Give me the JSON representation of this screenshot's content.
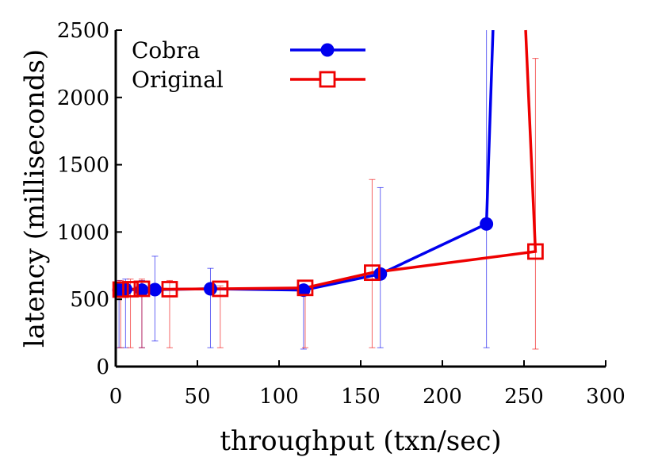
{
  "chart_data": {
    "type": "line",
    "xlabel": "throughput (txn/sec)",
    "ylabel": "latency (milliseconds)",
    "xlim": [
      0,
      300
    ],
    "ylim": [
      0,
      2500
    ],
    "xticks": [
      0,
      50,
      100,
      150,
      200,
      250,
      300
    ],
    "xtick_labels": [
      "0",
      "50",
      "100",
      "150",
      "200",
      "250",
      "300"
    ],
    "yticks": [
      0,
      500,
      1000,
      1500,
      2000,
      2500
    ],
    "ytick_labels": [
      "0",
      "500",
      "1000",
      "1500",
      "2000",
      "2500"
    ],
    "grid": false,
    "legend_position": "top-left",
    "series": [
      {
        "name": "Cobra",
        "color": "#0000ee",
        "marker": "filled-circle",
        "points": [
          {
            "x": 2,
            "y": 570,
            "err_low": 140,
            "err_high": 640
          },
          {
            "x": 6,
            "y": 575,
            "err_low": 140,
            "err_high": 650
          },
          {
            "x": 16,
            "y": 568,
            "err_low": 140,
            "err_high": 640
          },
          {
            "x": 24,
            "y": 572,
            "err_low": 190,
            "err_high": 820
          },
          {
            "x": 58,
            "y": 578,
            "err_low": 140,
            "err_high": 730
          },
          {
            "x": 115,
            "y": 568,
            "err_low": 130,
            "err_high": 590
          },
          {
            "x": 162,
            "y": 688,
            "err_low": 140,
            "err_high": 1330
          },
          {
            "x": 227,
            "y": 1060,
            "err_low": 140,
            "err_high": 2500
          }
        ],
        "line_extension": {
          "x": 231,
          "y": 2500
        }
      },
      {
        "name": "Original",
        "color": "#ee0000",
        "marker": "open-square",
        "points": [
          {
            "x": 3,
            "y": 572,
            "err_low": 140,
            "err_high": 640
          },
          {
            "x": 9,
            "y": 575,
            "err_low": 140,
            "err_high": 650
          },
          {
            "x": 16,
            "y": 578,
            "err_low": 140,
            "err_high": 650
          },
          {
            "x": 33,
            "y": 575,
            "err_low": 140,
            "err_high": 640
          },
          {
            "x": 64,
            "y": 578,
            "err_low": 140,
            "err_high": 600
          },
          {
            "x": 116,
            "y": 585,
            "err_low": 140,
            "err_high": 600
          },
          {
            "x": 157,
            "y": 698,
            "err_low": 140,
            "err_high": 1390
          },
          {
            "x": 257,
            "y": 855,
            "err_low": 130,
            "err_high": 2290
          }
        ],
        "line_extension": {
          "x": 251,
          "y": 2500
        }
      }
    ]
  }
}
